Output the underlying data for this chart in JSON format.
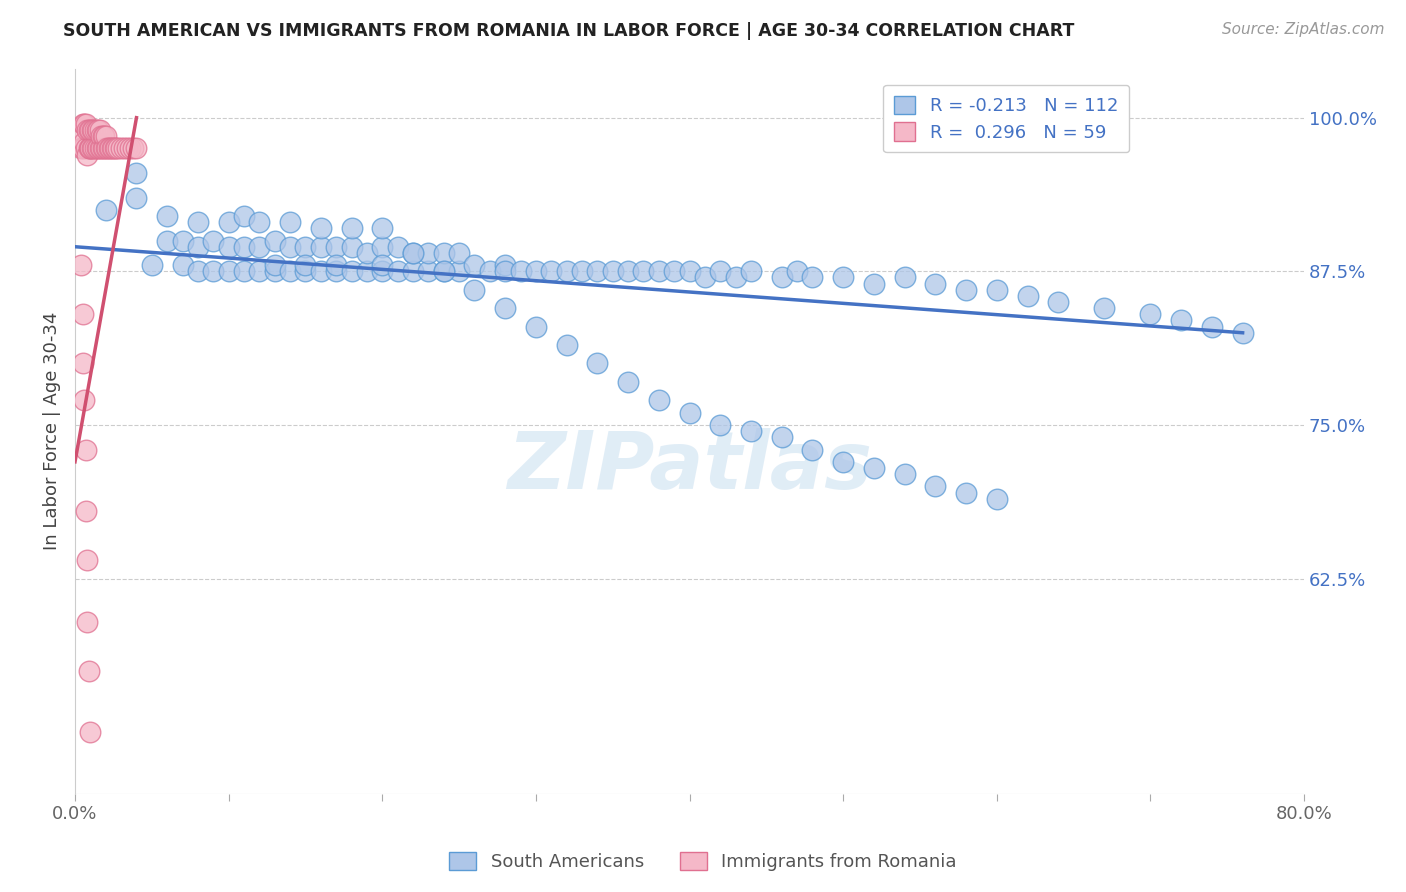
{
  "title": "SOUTH AMERICAN VS IMMIGRANTS FROM ROMANIA IN LABOR FORCE | AGE 30-34 CORRELATION CHART",
  "source": "Source: ZipAtlas.com",
  "ylabel": "In Labor Force | Age 30-34",
  "xlim": [
    0.0,
    0.8
  ],
  "ylim": [
    0.45,
    1.04
  ],
  "xticks": [
    0.0,
    0.1,
    0.2,
    0.3,
    0.4,
    0.5,
    0.6,
    0.7,
    0.8
  ],
  "xticklabels": [
    "0.0%",
    "",
    "",
    "",
    "",
    "",
    "",
    "",
    "80.0%"
  ],
  "yticks_right": [
    0.625,
    0.75,
    0.875,
    1.0
  ],
  "yticklabels_right": [
    "62.5%",
    "75.0%",
    "87.5%",
    "100.0%"
  ],
  "blue_color": "#aec6e8",
  "pink_color": "#f5b8c8",
  "blue_edge": "#5b9bd5",
  "pink_edge": "#e07090",
  "trend_blue": "#4472c4",
  "trend_pink": "#d05070",
  "R_blue": -0.213,
  "N_blue": 112,
  "R_pink": 0.296,
  "N_pink": 59,
  "watermark": "ZIPatlas",
  "legend_south": "South Americans",
  "legend_romania": "Immigrants from Romania",
  "blue_x": [
    0.02,
    0.04,
    0.04,
    0.05,
    0.06,
    0.06,
    0.07,
    0.07,
    0.08,
    0.08,
    0.08,
    0.09,
    0.09,
    0.1,
    0.1,
    0.1,
    0.11,
    0.11,
    0.11,
    0.12,
    0.12,
    0.12,
    0.13,
    0.13,
    0.13,
    0.14,
    0.14,
    0.14,
    0.15,
    0.15,
    0.15,
    0.16,
    0.16,
    0.16,
    0.17,
    0.17,
    0.17,
    0.18,
    0.18,
    0.18,
    0.19,
    0.19,
    0.2,
    0.2,
    0.2,
    0.21,
    0.21,
    0.22,
    0.22,
    0.23,
    0.23,
    0.24,
    0.24,
    0.25,
    0.25,
    0.26,
    0.27,
    0.28,
    0.28,
    0.29,
    0.3,
    0.31,
    0.32,
    0.33,
    0.34,
    0.35,
    0.36,
    0.37,
    0.38,
    0.39,
    0.4,
    0.41,
    0.42,
    0.43,
    0.44,
    0.46,
    0.47,
    0.48,
    0.5,
    0.52,
    0.54,
    0.56,
    0.58,
    0.6,
    0.62,
    0.64,
    0.67,
    0.7,
    0.72,
    0.74,
    0.76,
    0.2,
    0.22,
    0.24,
    0.26,
    0.28,
    0.3,
    0.32,
    0.34,
    0.36,
    0.38,
    0.4,
    0.42,
    0.44,
    0.46,
    0.48,
    0.5,
    0.52,
    0.54,
    0.56,
    0.58,
    0.6
  ],
  "blue_y": [
    0.925,
    0.935,
    0.955,
    0.88,
    0.9,
    0.92,
    0.88,
    0.9,
    0.875,
    0.895,
    0.915,
    0.875,
    0.9,
    0.875,
    0.895,
    0.915,
    0.875,
    0.895,
    0.92,
    0.875,
    0.895,
    0.915,
    0.875,
    0.9,
    0.88,
    0.875,
    0.895,
    0.915,
    0.875,
    0.895,
    0.88,
    0.875,
    0.895,
    0.91,
    0.875,
    0.895,
    0.88,
    0.875,
    0.895,
    0.91,
    0.875,
    0.89,
    0.875,
    0.895,
    0.88,
    0.875,
    0.895,
    0.875,
    0.89,
    0.875,
    0.89,
    0.875,
    0.89,
    0.875,
    0.89,
    0.88,
    0.875,
    0.88,
    0.875,
    0.875,
    0.875,
    0.875,
    0.875,
    0.875,
    0.875,
    0.875,
    0.875,
    0.875,
    0.875,
    0.875,
    0.875,
    0.87,
    0.875,
    0.87,
    0.875,
    0.87,
    0.875,
    0.87,
    0.87,
    0.865,
    0.87,
    0.865,
    0.86,
    0.86,
    0.855,
    0.85,
    0.845,
    0.84,
    0.835,
    0.83,
    0.825,
    0.91,
    0.89,
    0.875,
    0.86,
    0.845,
    0.83,
    0.815,
    0.8,
    0.785,
    0.77,
    0.76,
    0.75,
    0.745,
    0.74,
    0.73,
    0.72,
    0.715,
    0.71,
    0.7,
    0.695,
    0.69
  ],
  "pink_x": [
    0.003,
    0.004,
    0.005,
    0.005,
    0.006,
    0.006,
    0.007,
    0.007,
    0.008,
    0.008,
    0.009,
    0.009,
    0.01,
    0.01,
    0.01,
    0.011,
    0.011,
    0.012,
    0.012,
    0.013,
    0.013,
    0.014,
    0.014,
    0.015,
    0.015,
    0.016,
    0.016,
    0.017,
    0.017,
    0.018,
    0.018,
    0.019,
    0.019,
    0.02,
    0.02,
    0.021,
    0.022,
    0.023,
    0.024,
    0.025,
    0.026,
    0.027,
    0.028,
    0.03,
    0.032,
    0.034,
    0.036,
    0.038,
    0.04,
    0.004,
    0.005,
    0.005,
    0.006,
    0.007,
    0.007,
    0.008,
    0.008,
    0.009,
    0.01
  ],
  "pink_y": [
    0.99,
    0.975,
    0.975,
    0.995,
    0.98,
    0.995,
    0.975,
    0.995,
    0.97,
    0.99,
    0.975,
    0.99,
    0.975,
    0.99,
    0.975,
    0.975,
    0.99,
    0.975,
    0.99,
    0.975,
    0.99,
    0.975,
    0.99,
    0.975,
    0.99,
    0.975,
    0.99,
    0.975,
    0.985,
    0.975,
    0.985,
    0.975,
    0.985,
    0.975,
    0.985,
    0.975,
    0.975,
    0.975,
    0.975,
    0.975,
    0.975,
    0.975,
    0.975,
    0.975,
    0.975,
    0.975,
    0.975,
    0.975,
    0.975,
    0.88,
    0.84,
    0.8,
    0.77,
    0.73,
    0.68,
    0.64,
    0.59,
    0.55,
    0.5
  ],
  "trend_blue_x0": 0.0,
  "trend_blue_y0": 0.895,
  "trend_blue_x1": 0.76,
  "trend_blue_y1": 0.825,
  "trend_pink_x0": 0.0,
  "trend_pink_y0": 0.72,
  "trend_pink_x1": 0.04,
  "trend_pink_y1": 1.0
}
